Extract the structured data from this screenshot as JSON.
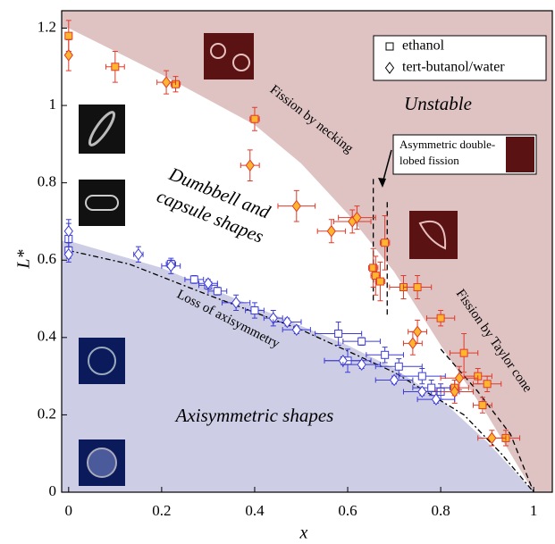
{
  "chart_data": {
    "type": "scatter",
    "xlabel": "x",
    "ylabel": "L*",
    "xlim": [
      -0.015,
      1.04
    ],
    "ylim": [
      0,
      1.245
    ],
    "xticks": [
      0,
      0.2,
      0.4,
      0.6,
      0.8,
      1
    ],
    "yticks": [
      0,
      0.2,
      0.4,
      0.6,
      0.8,
      1,
      1.2
    ],
    "legend": "upper right",
    "regions": [
      {
        "color": "#dfc3c3",
        "side": "above",
        "x": [
          0,
          0.2,
          0.4,
          0.5,
          0.6,
          0.7,
          0.8,
          0.9,
          1.0
        ],
        "y": [
          1.2,
          1.08,
          0.95,
          0.85,
          0.72,
          0.57,
          0.38,
          0.2,
          0
        ]
      },
      {
        "color": "#cdcde6",
        "side": "below",
        "x": [
          0,
          0.2,
          0.4,
          0.6,
          0.7,
          0.8,
          0.9,
          1.0
        ],
        "y": [
          0.65,
          0.58,
          0.48,
          0.38,
          0.32,
          0.24,
          0.13,
          0
        ]
      }
    ],
    "curves": [
      {
        "dash": "6 3 2 3",
        "x": [
          0,
          0.13,
          0.3,
          0.5,
          0.7,
          0.85,
          0.93,
          1.0
        ],
        "y": [
          0.625,
          0.59,
          0.51,
          0.42,
          0.31,
          0.2,
          0.1,
          0
        ]
      },
      {
        "dash": "6 4",
        "x": [
          0.655,
          0.655
        ],
        "y": [
          0.81,
          0.49
        ]
      },
      {
        "dash": "6 4",
        "x": [
          0.685,
          0.685
        ],
        "y": [
          0.75,
          0.45
        ]
      },
      {
        "dash": "6 4",
        "x": [
          0.8,
          0.88,
          0.95,
          1.0
        ],
        "y": [
          0.37,
          0.26,
          0.15,
          0
        ]
      }
    ],
    "series": [
      {
        "name": "ethanol",
        "marker": "square",
        "x": [
          0,
          0.1,
          0.23,
          0.4,
          0.68,
          0.655,
          0.66,
          0.67,
          0.72,
          0.75,
          0.8,
          0.85,
          0.88,
          0.9,
          0.89,
          0.94,
          0.83,
          0,
          0,
          0.22,
          0.27,
          0.3,
          0.32,
          0.4,
          0.58,
          0.63,
          0.6,
          0.68,
          0.71,
          0.76,
          0.78,
          0.8
        ],
        "values": [
          1.18,
          1.1,
          1.055,
          0.965,
          0.645,
          0.58,
          0.56,
          0.545,
          0.53,
          0.53,
          0.45,
          0.36,
          0.3,
          0.28,
          0.225,
          0.14,
          0.27,
          0.655,
          0.625,
          0.59,
          0.55,
          0.535,
          0.52,
          0.47,
          0.41,
          0.39,
          0.34,
          0.355,
          0.325,
          0.3,
          0.27,
          0.26
        ],
        "xerr": [
          0,
          0.02,
          0.01,
          0.01,
          0.01,
          0.01,
          0.01,
          0.01,
          0.03,
          0.03,
          0.03,
          0.03,
          0.03,
          0.03,
          0.02,
          0.03,
          0.03,
          0,
          0,
          0.01,
          0.02,
          0.02,
          0.02,
          0.02,
          0.05,
          0.04,
          0.05,
          0.04,
          0.05,
          0.05,
          0.04,
          0.04
        ],
        "yerr": [
          0.04,
          0.04,
          0.02,
          0.03,
          0.07,
          0.05,
          0.05,
          0.05,
          0.03,
          0.03,
          0.02,
          0.05,
          0.02,
          0.02,
          0.02,
          0.02,
          0.02,
          0.04,
          0.02,
          0.01,
          0.01,
          0.01,
          0.01,
          0.02,
          0.03,
          0.01,
          0.03,
          0.02,
          0.02,
          0.02,
          0.02,
          0.02
        ],
        "colors": [
          "#e03a2a",
          "#e03a2a",
          "#e03a2a",
          "#e03a2a",
          "#e03a2a",
          "#e03a2a",
          "#e03a2a",
          "#e03a2a",
          "#e03a2a",
          "#e03a2a",
          "#e03a2a",
          "#e03a2a",
          "#e03a2a",
          "#e03a2a",
          "#e03a2a",
          "#e03a2a",
          "#e03a2a",
          "#3d3dd6",
          "#3d3dd6",
          "#3d3dd6",
          "#3d3dd6",
          "#3d3dd6",
          "#3d3dd6",
          "#3d3dd6",
          "#3d3dd6",
          "#3d3dd6",
          "#3d3dd6",
          "#3d3dd6",
          "#3d3dd6",
          "#3d3dd6",
          "#3d3dd6",
          "#3d3dd6"
        ],
        "fills": [
          "#ffb52e",
          "#ffb52e",
          "#ffb52e",
          "#ffb52e",
          "#ffb52e",
          "#ffb52e",
          "#ffb52e",
          "#ffb52e",
          "#ffb52e",
          "#ffb52e",
          "#ffb52e",
          "#ffb52e",
          "#ffb52e",
          "#ffb52e",
          "#ffb52e",
          "#ffb52e",
          "#ffb52e",
          "#ffffff",
          "#ffffff",
          "#ffffff",
          "#ffffff",
          "#ffffff",
          "#ffffff",
          "#ffffff",
          "#ffffff",
          "#ffffff",
          "#ffffff",
          "#ffffff",
          "#ffffff",
          "#ffffff",
          "#ffffff",
          "#ffffff"
        ]
      },
      {
        "name": "tert-butanol/water",
        "marker": "diamond",
        "x": [
          0,
          0.21,
          0.39,
          0.49,
          0.565,
          0.61,
          0.62,
          0.74,
          0.75,
          0.83,
          0.84,
          0.91,
          0,
          0,
          0.15,
          0.22,
          0.3,
          0.36,
          0.44,
          0.47,
          0.49,
          0.59,
          0.63,
          0.7,
          0.76,
          0.79
        ],
        "values": [
          1.13,
          1.06,
          0.845,
          0.74,
          0.675,
          0.7,
          0.71,
          0.385,
          0.415,
          0.26,
          0.295,
          0.14,
          0.675,
          0.615,
          0.615,
          0.585,
          0.54,
          0.49,
          0.45,
          0.44,
          0.42,
          0.34,
          0.33,
          0.29,
          0.26,
          0.24
        ],
        "xerr": [
          0,
          0.02,
          0.02,
          0.04,
          0.03,
          0.04,
          0.04,
          0.02,
          0.02,
          0.04,
          0.04,
          0.03,
          0,
          0,
          0.01,
          0.02,
          0.02,
          0.03,
          0.02,
          0.03,
          0.03,
          0.04,
          0.04,
          0.04,
          0.04,
          0.04
        ],
        "yerr": [
          0.04,
          0.03,
          0.04,
          0.04,
          0.03,
          0.03,
          0.03,
          0.03,
          0.03,
          0.03,
          0.03,
          0.02,
          0.03,
          0.02,
          0.02,
          0.02,
          0.01,
          0.02,
          0.02,
          0.01,
          0.01,
          0.01,
          0.01,
          0.01,
          0.01,
          0.01
        ],
        "colors": [
          "#e03a2a",
          "#e03a2a",
          "#e03a2a",
          "#e03a2a",
          "#e03a2a",
          "#e03a2a",
          "#e03a2a",
          "#e03a2a",
          "#e03a2a",
          "#e03a2a",
          "#e03a2a",
          "#e03a2a",
          "#3d3dd6",
          "#3d3dd6",
          "#3d3dd6",
          "#3d3dd6",
          "#3d3dd6",
          "#3d3dd6",
          "#3d3dd6",
          "#3d3dd6",
          "#3d3dd6",
          "#3d3dd6",
          "#3d3dd6",
          "#3d3dd6",
          "#3d3dd6",
          "#3d3dd6"
        ],
        "fills": [
          "#ffb52e",
          "#ffb52e",
          "#ffb52e",
          "#ffb52e",
          "#ffb52e",
          "#ffb52e",
          "#ffb52e",
          "#ffb52e",
          "#ffb52e",
          "#ffb52e",
          "#ffb52e",
          "#ffb52e",
          "#ffffff",
          "#ffffff",
          "#ffffff",
          "#ffffff",
          "#ffffff",
          "#ffffff",
          "#ffffff",
          "#ffffff",
          "#ffffff",
          "#ffffff",
          "#ffffff",
          "#ffffff",
          "#ffffff",
          "#ffffff"
        ]
      }
    ],
    "annotations": [
      [
        "Unstable"
      ],
      [
        "Fission by necking"
      ],
      [
        "Asymmetric double-",
        "lobed fission"
      ],
      [
        "Dumbbell and",
        "capsule shapes"
      ],
      [
        "Fission by Taylor cone"
      ],
      [
        "Loss of axisymmetry"
      ],
      [
        "Axisymmetric shapes"
      ]
    ]
  }
}
